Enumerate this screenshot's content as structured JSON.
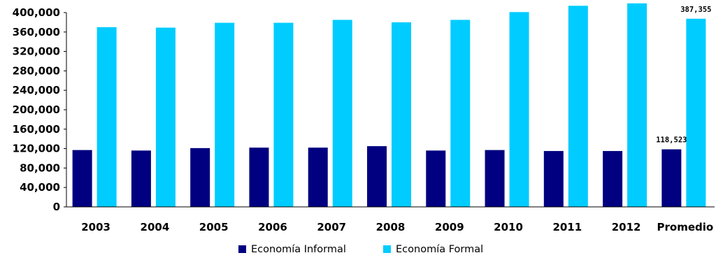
{
  "chart_data": {
    "type": "bar",
    "categories": [
      "2003",
      "2004",
      "2005",
      "2006",
      "2007",
      "2008",
      "2009",
      "2010",
      "2011",
      "2012",
      "Promedio"
    ],
    "series": [
      {
        "name": "Economía Informal",
        "color": "#000080",
        "values": [
          117000,
          116000,
          121000,
          122000,
          122000,
          125000,
          116000,
          117000,
          115000,
          115000,
          118523
        ]
      },
      {
        "name": "Economía Formal",
        "color": "#00CCFF",
        "values": [
          370000,
          369000,
          379000,
          379000,
          385000,
          380000,
          385000,
          401000,
          414000,
          419000,
          387355
        ]
      }
    ],
    "y_ticks": [
      "0",
      "40,000",
      "80,000",
      "120,000",
      "160,000",
      "200,000",
      "240,000",
      "280,000",
      "320,000",
      "360,000",
      "400,000"
    ],
    "ylim": [
      0,
      400000
    ],
    "data_labels": [
      {
        "series": 0,
        "category": 10,
        "text": "118,523"
      },
      {
        "series": 1,
        "category": 10,
        "text": "387,355"
      }
    ],
    "title": "",
    "xlabel": "",
    "ylabel": "",
    "grid": false,
    "legend_position": "bottom"
  }
}
